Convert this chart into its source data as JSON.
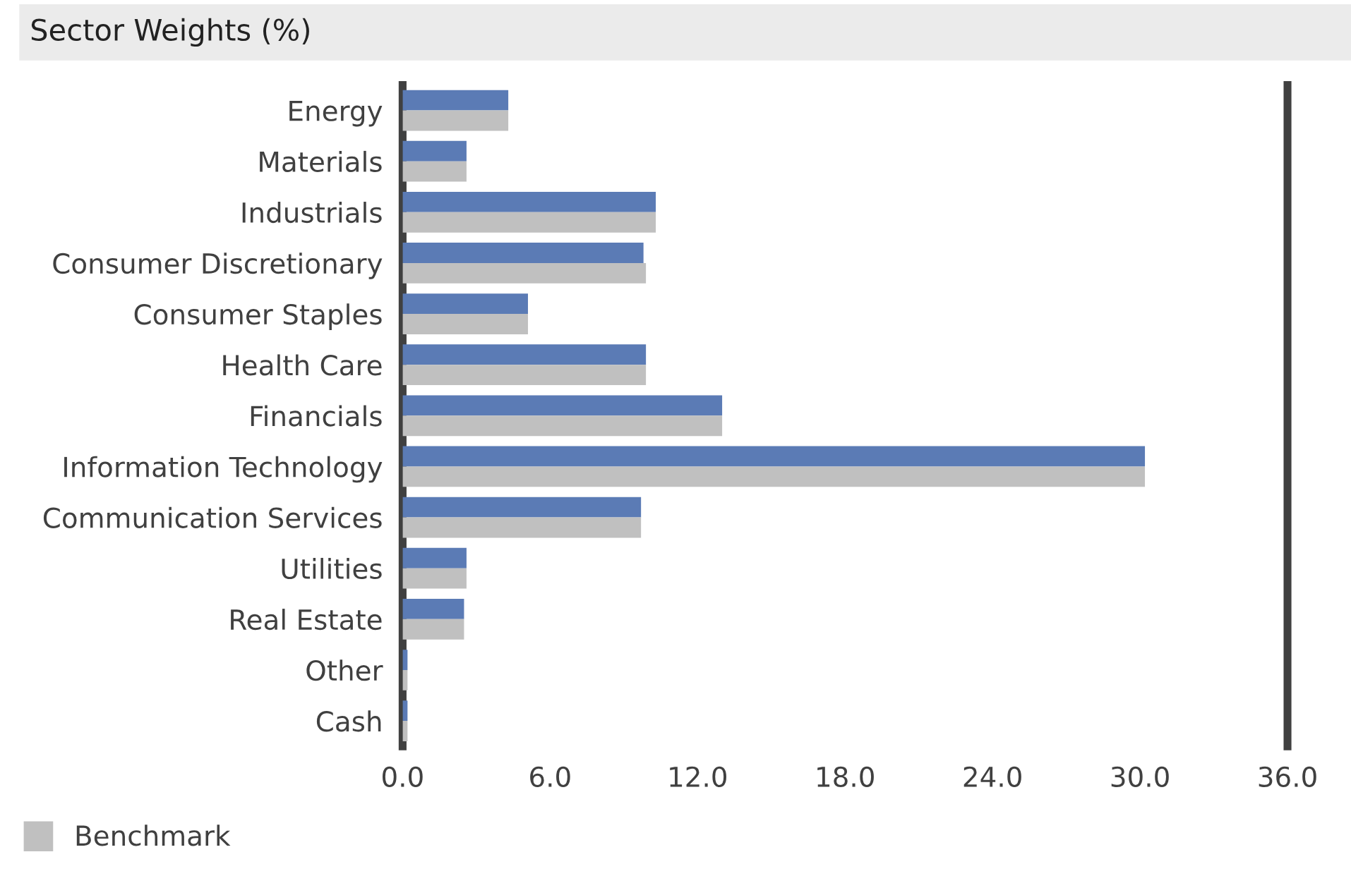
{
  "chart_data": {
    "type": "bar",
    "orientation": "horizontal",
    "title": "Sector Weights (%)",
    "categories": [
      "Energy",
      "Materials",
      "Industrials",
      "Consumer Discretionary",
      "Consumer Staples",
      "Health Care",
      "Financials",
      "Information Technology",
      "Communication Services",
      "Utilities",
      "Real Estate",
      "Other",
      "Cash"
    ],
    "series": [
      {
        "color": "#5b7bb5",
        "values": [
          4.3,
          2.6,
          10.3,
          9.8,
          5.1,
          9.9,
          13.0,
          30.2,
          9.7,
          2.6,
          2.5,
          0.2,
          0.2
        ]
      },
      {
        "name": "Benchmark",
        "color": "#c0c0c0",
        "values": [
          4.3,
          2.6,
          10.3,
          9.9,
          5.1,
          9.9,
          13.0,
          30.2,
          9.7,
          2.6,
          2.5,
          0.2,
          0.2
        ]
      }
    ],
    "xlim": [
      0,
      36
    ],
    "xticks": [
      {
        "value": 0,
        "label": "0.0"
      },
      {
        "value": 6,
        "label": "6.0"
      },
      {
        "value": 12,
        "label": "12.0"
      },
      {
        "value": 18,
        "label": "18.0"
      },
      {
        "value": 24,
        "label": "24.0"
      },
      {
        "value": 30,
        "label": "30.0"
      },
      {
        "value": 36,
        "label": "36.0"
      }
    ],
    "grid": false,
    "legend": "bottom left"
  }
}
